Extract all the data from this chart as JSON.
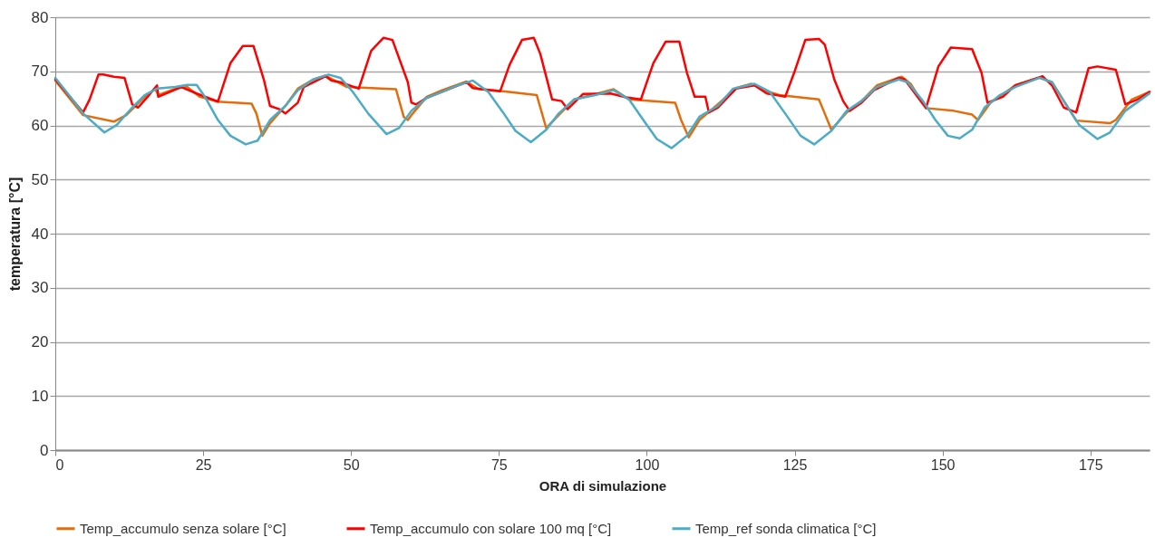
{
  "chart_data": {
    "type": "line",
    "xlabel": "ORA di simulazione",
    "ylabel": "temperatura [°C]",
    "xlim": [
      0,
      185
    ],
    "xticks": [
      0,
      25,
      50,
      75,
      100,
      125,
      150,
      175
    ],
    "ylim": [
      0,
      80
    ],
    "yticks": [
      0,
      10,
      20,
      30,
      40,
      50,
      60,
      70,
      80
    ],
    "grid": "y",
    "legend": "bottom",
    "line_style": "solid",
    "series": [
      {
        "name": "Temp_accumulo senza solare [°C]",
        "color": "#e46c0a",
        "x": [
          0,
          4.7,
          9.9,
          12,
          15.1,
          16.9,
          17.4,
          20.3,
          22.3,
          24.4,
          27.5,
          33.2,
          34,
          35,
          36.3,
          38.9,
          41,
          43.6,
          45.7,
          47.2,
          49.3,
          57.6,
          58.9,
          59.6,
          60.2,
          62.8,
          65.4,
          69.5,
          71.6,
          75.7,
          81.4,
          83,
          85.1,
          87.7,
          91.3,
          94.4,
          97,
          104.8,
          105.8,
          107.1,
          108.9,
          112,
          115.1,
          117.7,
          119.8,
          122.4,
          129.1,
          129.9,
          131.2,
          133.8,
          136.3,
          138.9,
          143.1,
          144.6,
          147.2,
          151.9,
          155,
          156,
          158.1,
          162.3,
          166.4,
          168.5,
          172.6,
          178.3,
          179.3,
          182,
          185
        ],
        "values": [
          68.3,
          61.9,
          60.7,
          61.9,
          65.3,
          66.8,
          65.6,
          66.8,
          67.1,
          65.3,
          64.4,
          64,
          62.2,
          58.1,
          60.4,
          63.6,
          66.8,
          68.5,
          69.2,
          68.3,
          67.1,
          66.7,
          61.6,
          61,
          61.9,
          65.3,
          66.5,
          68.1,
          66.7,
          66.3,
          65.6,
          59.5,
          61.9,
          64.8,
          65.8,
          66.7,
          64.8,
          64.2,
          61,
          57.8,
          61,
          63.9,
          66.9,
          67.7,
          66.5,
          65.6,
          64.8,
          62.7,
          59.2,
          62.4,
          64.5,
          67.4,
          69,
          67.7,
          63.2,
          62.7,
          62,
          61,
          64.2,
          67.4,
          68.8,
          68,
          60.9,
          60.4,
          61,
          64.8,
          66.2
        ]
      },
      {
        "name": "Temp_accumulo con solare 100 mq [°C]",
        "color": "#ff0000",
        "x": [
          0,
          4.7,
          5.8,
          7.3,
          8.1,
          9.9,
          11.7,
          13,
          14,
          15.6,
          17.2,
          17.4,
          21.3,
          23.9,
          27.5,
          29.6,
          31.7,
          33.5,
          35.3,
          36.3,
          37.9,
          38.9,
          41,
          42,
          45.7,
          46.7,
          48.2,
          51.3,
          53.4,
          55.5,
          57,
          59.6,
          60.2,
          61,
          62.8,
          65.4,
          69.5,
          70.6,
          75.2,
          76.8,
          78.9,
          80.9,
          82,
          84,
          85.6,
          86.6,
          89.2,
          93.9,
          96.5,
          99,
          101.1,
          103.2,
          105.5,
          106.8,
          108.1,
          109.9,
          110.5,
          112,
          115.1,
          118.2,
          120.3,
          122.4,
          123.4,
          124.9,
          126.8,
          129.1,
          130.1,
          131.7,
          133.2,
          134.3,
          136.3,
          138.4,
          142.6,
          143.6,
          147.2,
          149.3,
          151.4,
          155,
          156.6,
          157.6,
          160.2,
          162.3,
          166.9,
          168.5,
          170.5,
          172.6,
          174.7,
          176.2,
          179.3,
          180.9,
          183,
          185
        ],
        "values": [
          68.5,
          62.4,
          64.8,
          69.4,
          69.4,
          69,
          68.8,
          63.9,
          63.3,
          65.3,
          67.4,
          65.3,
          67.1,
          65.9,
          64.4,
          71.5,
          74.7,
          74.7,
          68.3,
          63.6,
          63,
          62.2,
          64.2,
          67.1,
          69.1,
          68.3,
          68,
          66.8,
          73.8,
          76.2,
          75.8,
          68,
          64.2,
          63.9,
          65.1,
          66.2,
          68,
          66.9,
          66.3,
          71.2,
          75.8,
          76.2,
          73.2,
          64.8,
          64.5,
          63,
          65.8,
          65.9,
          65.2,
          64.8,
          71.5,
          75.5,
          75.5,
          69.7,
          65.3,
          65.3,
          62.4,
          63.3,
          66.8,
          67.4,
          65.9,
          65.5,
          65.3,
          69.7,
          75.8,
          76,
          74.9,
          68.5,
          64.5,
          62.7,
          64.2,
          66.5,
          68.8,
          68.5,
          63.2,
          70.9,
          74.4,
          74.1,
          69.7,
          64.2,
          65.3,
          67.4,
          69.1,
          67.4,
          63.3,
          62.4,
          70.6,
          70.9,
          70.3,
          63.9,
          64.8,
          66.2
        ]
      },
      {
        "name": "Temp_ref sonda climatica [°C]",
        "color": "#4bacc6",
        "x": [
          0,
          2.1,
          4.7,
          8.3,
          10.4,
          13,
          15.1,
          17.2,
          20.3,
          22.3,
          23.9,
          25.4,
          27.5,
          29.6,
          32.2,
          34.2,
          36.3,
          38.9,
          41,
          43.6,
          46.2,
          48.2,
          50.3,
          52.9,
          56,
          58.1,
          60.2,
          62.8,
          65.4,
          68,
          70.6,
          73.2,
          75.7,
          77.8,
          80.4,
          83,
          85.1,
          87.7,
          91.3,
          94.4,
          97,
          99.6,
          101.7,
          104.2,
          106.8,
          108.9,
          112,
          114.6,
          118.2,
          120.8,
          123.4,
          126,
          128.3,
          131.2,
          133.8,
          136.3,
          138.9,
          142.6,
          144.1,
          146.7,
          148.8,
          150.9,
          152.9,
          155,
          157.1,
          159.7,
          162.3,
          166.4,
          168.5,
          170.5,
          173.1,
          176.2,
          178.3,
          180.9,
          185
        ],
        "values": [
          68.8,
          65.9,
          62.2,
          58.7,
          60.1,
          63.3,
          65.6,
          66.8,
          67.1,
          67.5,
          67.5,
          65.1,
          61,
          58.1,
          56.5,
          57.2,
          61,
          63.6,
          66.5,
          68.5,
          69.4,
          68.8,
          66.2,
          62.2,
          58.4,
          59.5,
          62.7,
          65.1,
          66.2,
          67.4,
          68.3,
          66.2,
          62.4,
          59,
          56.9,
          59.2,
          62.2,
          64.8,
          65.6,
          66.5,
          64.8,
          60.7,
          57.5,
          55.8,
          58.1,
          61.6,
          63.6,
          66.8,
          67.7,
          66.2,
          62.2,
          58.1,
          56.5,
          59,
          62.7,
          64.5,
          67.1,
          68.5,
          68,
          64.5,
          61,
          58.1,
          57.6,
          59.2,
          63.3,
          65.6,
          67.1,
          68.8,
          68,
          64.5,
          60.1,
          57.5,
          58.7,
          62.7,
          65.9
        ]
      }
    ]
  }
}
